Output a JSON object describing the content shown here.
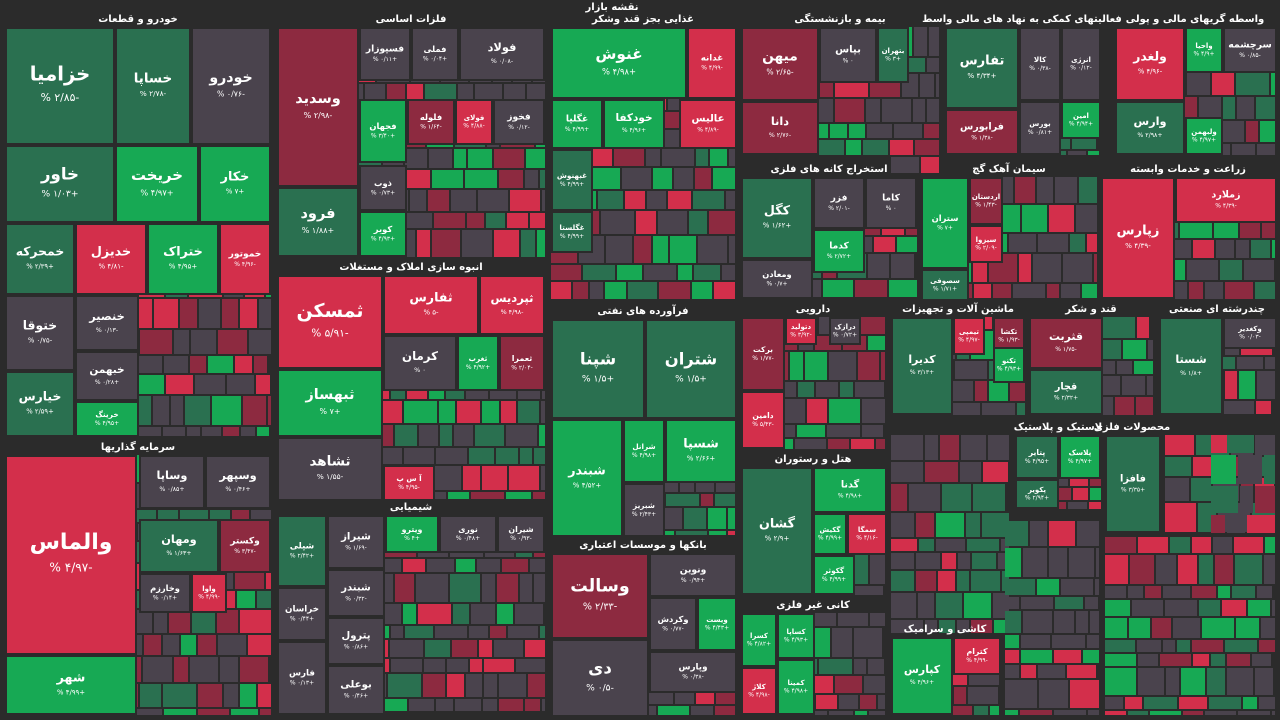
{
  "title": "نقشه بازار",
  "sectors": [
    {
      "name": "خودرو و قطعات",
      "tiles": [
        {
          "name": "خزامیا",
          "change": "-۲/۸۵ %",
          "color": "#2a7050"
        },
        {
          "name": "خساپا",
          "change": "-۲/۷۸ %",
          "color": "#2a7050"
        },
        {
          "name": "خودرو",
          "change": "-۰/۷۶ %",
          "color": "#4a434d"
        },
        {
          "name": "خاور",
          "change": "+۱/۰۳ %",
          "color": "#2a7050"
        },
        {
          "name": "خریخت",
          "change": "+۴/۹۷ %",
          "color": "#17a954"
        },
        {
          "name": "خکار",
          "change": "+۷ %",
          "color": "#17a954"
        },
        {
          "name": "خمحرکه",
          "change": "+۲/۳۹ %",
          "color": "#2a7050"
        },
        {
          "name": "خدیزل",
          "change": "-۴/۸۱ %",
          "color": "#d32f4b"
        },
        {
          "name": "ختراک",
          "change": "+۴/۹۵ %",
          "color": "#17a954"
        },
        {
          "name": "خموتور",
          "change": "-۴/۹۶ %",
          "color": "#d32f4b"
        },
        {
          "name": "ختوقا",
          "change": "-۰/۷۵ %",
          "color": "#4a434d"
        },
        {
          "name": "خنصیر",
          "change": "-۰/۱۳ %",
          "color": "#4a434d"
        },
        {
          "name": "خیارس",
          "change": "+۲/۵۹ %",
          "color": "#2a7050"
        },
        {
          "name": "خبهمن",
          "change": "+۰/۲۸ %",
          "color": "#4a434d"
        },
        {
          "name": "خرینگ",
          "change": "+۴/۹۵ %",
          "color": "#17a954"
        }
      ]
    },
    {
      "name": "سرمایه گذاریها",
      "tiles": [
        {
          "name": "والماس",
          "change": "-۴/۹۷ %",
          "color": "#d32f4b"
        },
        {
          "name": "شهر",
          "change": "+۴/۹۹ %",
          "color": "#17a954"
        },
        {
          "name": "وساپا",
          "change": "+۰/۸۵ %",
          "color": "#4a434d"
        },
        {
          "name": "وسپهر",
          "change": "+۰/۴۶ %",
          "color": "#4a434d"
        },
        {
          "name": "ومهان",
          "change": "+۱/۶۳ %",
          "color": "#2a7050"
        },
        {
          "name": "وکستر",
          "change": "-۳/۴۷ %",
          "color": "#8d2a40"
        },
        {
          "name": "وخارزم",
          "change": "+۰/۱۴ %",
          "color": "#4a434d"
        },
        {
          "name": "واوا",
          "change": "-۴/۹۹ %",
          "color": "#d32f4b"
        }
      ]
    },
    {
      "name": "فلزات اساسی",
      "tiles": [
        {
          "name": "وسدید",
          "change": "-۲/۹۸ %",
          "color": "#8d2a40"
        },
        {
          "name": "فرود",
          "change": "+۱/۸۸ %",
          "color": "#2a7050"
        },
        {
          "name": "فسپوزار",
          "change": "+۰/۱۱ %",
          "color": "#4a434d"
        },
        {
          "name": "فملی",
          "change": "+۰/۰۴ %",
          "color": "#4a434d"
        },
        {
          "name": "فولاد",
          "change": "-۰/۰۸ %",
          "color": "#4a434d"
        },
        {
          "name": "فجهان",
          "change": "+۳/۴۰ %",
          "color": "#17a954"
        },
        {
          "name": "فلوله",
          "change": "-۱/۶۴ %",
          "color": "#8d2a40"
        },
        {
          "name": "فولای",
          "change": "-۴/۸۸ %",
          "color": "#d32f4b"
        },
        {
          "name": "فخوز",
          "change": "-۰/۱۲ %",
          "color": "#4a434d"
        },
        {
          "name": "ذوب",
          "change": "+۰/۷۳ %",
          "color": "#4a434d"
        },
        {
          "name": "کویر",
          "change": "+۴/۹۳ %",
          "color": "#17a954"
        }
      ]
    },
    {
      "name": "انبوه سازی املاک و مستغلات",
      "tiles": [
        {
          "name": "ثمسکن",
          "change": "-۵/۹۱ %",
          "color": "#d32f4b"
        },
        {
          "name": "ثفارس",
          "change": "-۵ %",
          "color": "#d32f4b"
        },
        {
          "name": "ثپردیس",
          "change": "-۴/۹۸ %",
          "color": "#d32f4b"
        },
        {
          "name": "کرمان",
          "change": "۰ %",
          "color": "#4a434d"
        },
        {
          "name": "ثغرب",
          "change": "+۴/۹۲ %",
          "color": "#17a954"
        },
        {
          "name": "ثعمرا",
          "change": "-۲/۰۴ %",
          "color": "#8d2a40"
        },
        {
          "name": "ثبهساز",
          "change": "+۷ %",
          "color": "#17a954"
        },
        {
          "name": "ثشاهد",
          "change": "-۱/۵۵ %",
          "color": "#4a434d"
        },
        {
          "name": "آ س پ",
          "change": "-۴/۹۵ %",
          "color": "#d32f4b"
        }
      ]
    },
    {
      "name": "شیمیایی",
      "tiles": [
        {
          "name": "شپلی",
          "change": "+۲/۴۲ %",
          "color": "#2a7050"
        },
        {
          "name": "شیراز",
          "change": "-۱/۶۹ %",
          "color": "#4a434d"
        },
        {
          "name": "ویترو",
          "change": "+۴ %",
          "color": "#17a954"
        },
        {
          "name": "نوری",
          "change": "+۰/۴۸ %",
          "color": "#4a434d"
        },
        {
          "name": "شیران",
          "change": "-۰/۹۳ %",
          "color": "#4a434d"
        },
        {
          "name": "خراسان",
          "change": "+۰/۴۴ %",
          "color": "#4a434d"
        },
        {
          "name": "شبندر",
          "change": "-۰/۳۲ %",
          "color": "#4a434d"
        },
        {
          "name": "پترول",
          "change": "+۰/۸۶ %",
          "color": "#4a434d"
        },
        {
          "name": "فارس",
          "change": "+۰/۱۳ %",
          "color": "#4a434d"
        },
        {
          "name": "بوعلی",
          "change": "+۰/۴۶ %",
          "color": "#4a434d"
        }
      ]
    },
    {
      "name": "غذایی بجز قند وشکر",
      "tiles": [
        {
          "name": "غنوش",
          "change": "+۴/۹۸ %",
          "color": "#17a954"
        },
        {
          "name": "غدانه",
          "change": "-۴/۹۹ %",
          "color": "#d32f4b"
        },
        {
          "name": "غگلپا",
          "change": "+۴/۹۹ %",
          "color": "#17a954"
        },
        {
          "name": "خودکفا",
          "change": "+۴/۹۶ %",
          "color": "#17a954"
        },
        {
          "name": "عالیس",
          "change": "-۴/۸۹ %",
          "color": "#d32f4b"
        },
        {
          "name": "غبهنوش",
          "change": "+۴/۹۹ %",
          "color": "#2a7050"
        },
        {
          "name": "غگلستا",
          "change": "+۴/۹۹ %",
          "color": "#2a7050"
        }
      ]
    },
    {
      "name": "فرآورده های نفتی",
      "tiles": [
        {
          "name": "شپنا",
          "change": "+۱/۵ %",
          "color": "#2a7050"
        },
        {
          "name": "شتران",
          "change": "+۱/۵ %",
          "color": "#2a7050"
        },
        {
          "name": "شبندر",
          "change": "+۴/۵۲ %",
          "color": "#17a954"
        },
        {
          "name": "شرانل",
          "change": "+۴/۹۸ %",
          "color": "#17a954"
        },
        {
          "name": "شسپا",
          "change": "+۲/۶۶ %",
          "color": "#17a954"
        },
        {
          "name": "شبریز",
          "change": "+۲/۴۳ %",
          "color": "#4a434d"
        }
      ]
    },
    {
      "name": "بانکها و موسسات اعتباری",
      "tiles": [
        {
          "name": "وسالت",
          "change": "-۲/۳۳ %",
          "color": "#8d2a40"
        },
        {
          "name": "دی",
          "change": "-۰/۵ %",
          "color": "#4a434d"
        },
        {
          "name": "ونوین",
          "change": "+۰/۹۴ %",
          "color": "#4a434d"
        },
        {
          "name": "وکردش",
          "change": "-۰/۷۷ %",
          "color": "#4a434d"
        },
        {
          "name": "ویست",
          "change": "+۴/۴۳ %",
          "color": "#17a954"
        },
        {
          "name": "وپارس",
          "change": "-۰/۳۸ %",
          "color": "#4a434d"
        }
      ]
    },
    {
      "name": "بیمه و بازنشستگی",
      "tiles": [
        {
          "name": "میهن",
          "change": "-۲/۶۵ %",
          "color": "#8d2a40"
        },
        {
          "name": "دانا",
          "change": "-۲/۷۶ %",
          "color": "#8d2a40"
        },
        {
          "name": "بپاس",
          "change": "۰ %",
          "color": "#4a434d"
        },
        {
          "name": "بتهران",
          "change": "+۳ %",
          "color": "#2a7050"
        }
      ]
    },
    {
      "name": "فعالیتهای کمکی به نهاد های مالی واسط",
      "tiles": [
        {
          "name": "تفارس",
          "change": "+۴/۳۴ %",
          "color": "#2a7050"
        },
        {
          "name": "فرابورس",
          "change": "-۱/۳۸ %",
          "color": "#8d2a40"
        },
        {
          "name": "کالا",
          "change": "-۰/۳۸ %",
          "color": "#4a434d"
        },
        {
          "name": "انرژی",
          "change": "-۰/۱۲ %",
          "color": "#4a434d"
        },
        {
          "name": "بورس",
          "change": "+۰/۸۱ %",
          "color": "#4a434d"
        },
        {
          "name": "امین",
          "change": "+۴/۹۴ %",
          "color": "#17a954"
        }
      ]
    },
    {
      "name": "واسطه گریهای مالی و پولی",
      "tiles": [
        {
          "name": "ولغدر",
          "change": "-۴/۹۶ %",
          "color": "#d32f4b"
        },
        {
          "name": "واحیا",
          "change": "+۴/۹ %",
          "color": "#17a954"
        },
        {
          "name": "سرچشمه",
          "change": "-۰/۸۵ %",
          "color": "#4a434d"
        },
        {
          "name": "وارس",
          "change": "+۲/۹۸ %",
          "color": "#2a7050"
        },
        {
          "name": "ولبهمن",
          "change": "+۴/۹۷ %",
          "color": "#17a954"
        }
      ]
    },
    {
      "name": "استخراج کانه های فلزی",
      "tiles": [
        {
          "name": "کگل",
          "change": "+۱/۶۲ %",
          "color": "#2a7050"
        },
        {
          "name": "ومعادن",
          "change": "+۰/۷ %",
          "color": "#4a434d"
        },
        {
          "name": "فزر",
          "change": "-۲/۰۱ %",
          "color": "#4a434d"
        },
        {
          "name": "کاما",
          "change": "۰ %",
          "color": "#4a434d"
        },
        {
          "name": "کدما",
          "change": "+۲/۷۲ %",
          "color": "#17a954"
        }
      ]
    },
    {
      "name": "سیمان آهک گچ",
      "tiles": [
        {
          "name": "ستران",
          "change": "+۷ %",
          "color": "#17a954"
        },
        {
          "name": "اردستان",
          "change": "-۱/۴۳ %",
          "color": "#8d2a40"
        },
        {
          "name": "سیزوا",
          "change": "-۲/۰۹ %",
          "color": "#d32f4b"
        },
        {
          "name": "سصوفی",
          "change": "+۱/۷۱ %",
          "color": "#2a7050"
        }
      ]
    },
    {
      "name": "زراعت و خدمات وابسته",
      "tiles": [
        {
          "name": "زپارس",
          "change": "-۴/۳۹ %",
          "color": "#d32f4b"
        },
        {
          "name": "زملارد",
          "change": "-۴/۳۹ %",
          "color": "#d32f4b"
        }
      ]
    },
    {
      "name": "دارویی",
      "tiles": [
        {
          "name": "برکت",
          "change": "-۱/۷۷ %",
          "color": "#8d2a40"
        },
        {
          "name": "دامین",
          "change": "-۵/۴۳ %",
          "color": "#d32f4b"
        },
        {
          "name": "دتولید",
          "change": "-۳/۹۲ %",
          "color": "#d32f4b"
        },
        {
          "name": "درازک",
          "change": "+۰/۷۲ %",
          "color": "#4a434d"
        }
      ]
    },
    {
      "name": "ماشین آلات و تجهیزات",
      "tiles": [
        {
          "name": "کدیرا",
          "change": "+۳/۱۳ %",
          "color": "#2a7050"
        },
        {
          "name": "تیمپی",
          "change": "-۴/۹۷ %",
          "color": "#d32f4b"
        },
        {
          "name": "تکشا",
          "change": "-۱/۹۳ %",
          "color": "#8d2a40"
        },
        {
          "name": "تکنو",
          "change": "+۴/۹۳ %",
          "color": "#17a954"
        }
      ]
    },
    {
      "name": "قند و شکر",
      "tiles": [
        {
          "name": "قثربت",
          "change": "-۱/۷۵ %",
          "color": "#8d2a40"
        },
        {
          "name": "قچار",
          "change": "+۲/۳۲ %",
          "color": "#2a7050"
        }
      ]
    },
    {
      "name": "چندرشته ای صنعتی",
      "tiles": [
        {
          "name": "شستا",
          "change": "+۱/۸ %",
          "color": "#2a7050"
        },
        {
          "name": "وکغدیر",
          "change": "-۰/۰۳ %",
          "color": "#4a434d"
        }
      ]
    },
    {
      "name": "هتل و رستوران",
      "tiles": [
        {
          "name": "گشان",
          "change": "+۲/۹ %",
          "color": "#2a7050"
        },
        {
          "name": "گدنا",
          "change": "+۴/۹۸ %",
          "color": "#17a954"
        },
        {
          "name": "گکیش",
          "change": "+۴/۹۹ %",
          "color": "#17a954"
        },
        {
          "name": "سمگا",
          "change": "-۴/۱۶ %",
          "color": "#d32f4b"
        },
        {
          "name": "گکوثر",
          "change": "+۴/۹۹ %",
          "color": "#17a954"
        }
      ]
    },
    {
      "name": "کانی غیر فلزی",
      "tiles": [
        {
          "name": "کسرا",
          "change": "+۴/۸۲ %",
          "color": "#17a954"
        },
        {
          "name": "کساپا",
          "change": "+۴/۹۳ %",
          "color": "#17a954"
        },
        {
          "name": "کلاژ",
          "change": "-۴/۹۸ %",
          "color": "#d32f4b"
        },
        {
          "name": "کمینا",
          "change": "+۴/۹۸ %",
          "color": "#17a954"
        }
      ]
    },
    {
      "name": "کاشی و سرامیک",
      "tiles": [
        {
          "name": "کپارس",
          "change": "+۴/۹۶ %",
          "color": "#17a954"
        },
        {
          "name": "کترام",
          "change": "-۴/۹۹ %",
          "color": "#d32f4b"
        }
      ]
    },
    {
      "name": "محصولات فلزی",
      "tiles": [
        {
          "name": "فافزا",
          "change": "+۳/۳۵ %",
          "color": "#2a7050"
        }
      ]
    },
    {
      "name": "لاستیک و پلاستیک",
      "tiles": [
        {
          "name": "پتایر",
          "change": "+۴/۹۵ %",
          "color": "#2a7050"
        },
        {
          "name": "پلاسک",
          "change": "+۴/۹۷ %",
          "color": "#17a954"
        },
        {
          "name": "پکویر",
          "change": "+۲/۹۴ %",
          "color": "#2a7050"
        }
      ]
    }
  ]
}
